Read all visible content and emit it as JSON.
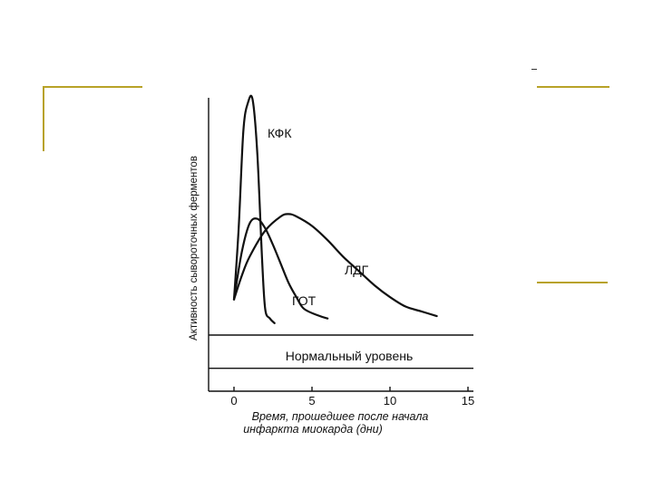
{
  "slide": {
    "accent_color": "#b8a227"
  },
  "chart_data": {
    "type": "line",
    "xlabel_lines": [
      "Время, прошедшее после начала",
      "инфаркта миокарда (дни)"
    ],
    "ylabel": "Активность сывороточных ферментов",
    "xlim": [
      -1.5,
      15
    ],
    "ylim": [
      -4,
      100
    ],
    "x_ticks": [
      0,
      5,
      10,
      15
    ],
    "normal_band": {
      "label": "Нормальный уровень",
      "low": 0,
      "high": 14
    },
    "series": [
      {
        "name": "КФК",
        "x": [
          0,
          0.3,
          0.6,
          0.9,
          1.2,
          1.5,
          1.8,
          2.0,
          2.3,
          2.6
        ],
        "y": [
          15,
          45,
          86,
          98,
          99,
          76,
          32,
          11,
          7,
          5
        ]
      },
      {
        "name": "ГОТ",
        "x": [
          0,
          0.5,
          1,
          1.5,
          2,
          2.5,
          3,
          3.5,
          4,
          4.5,
          5.5,
          6
        ],
        "y": [
          15,
          35,
          47,
          49,
          45,
          38,
          30,
          22,
          16,
          11,
          8,
          7
        ]
      },
      {
        "name": "ЛДГ",
        "x": [
          0,
          0.5,
          1,
          2,
          3,
          3.5,
          4,
          5,
          6,
          7,
          8,
          9,
          10,
          11,
          12,
          13
        ],
        "y": [
          15,
          25,
          33,
          44,
          50,
          51,
          50,
          46,
          40,
          33,
          27,
          21,
          16,
          12,
          10,
          8
        ]
      }
    ]
  }
}
